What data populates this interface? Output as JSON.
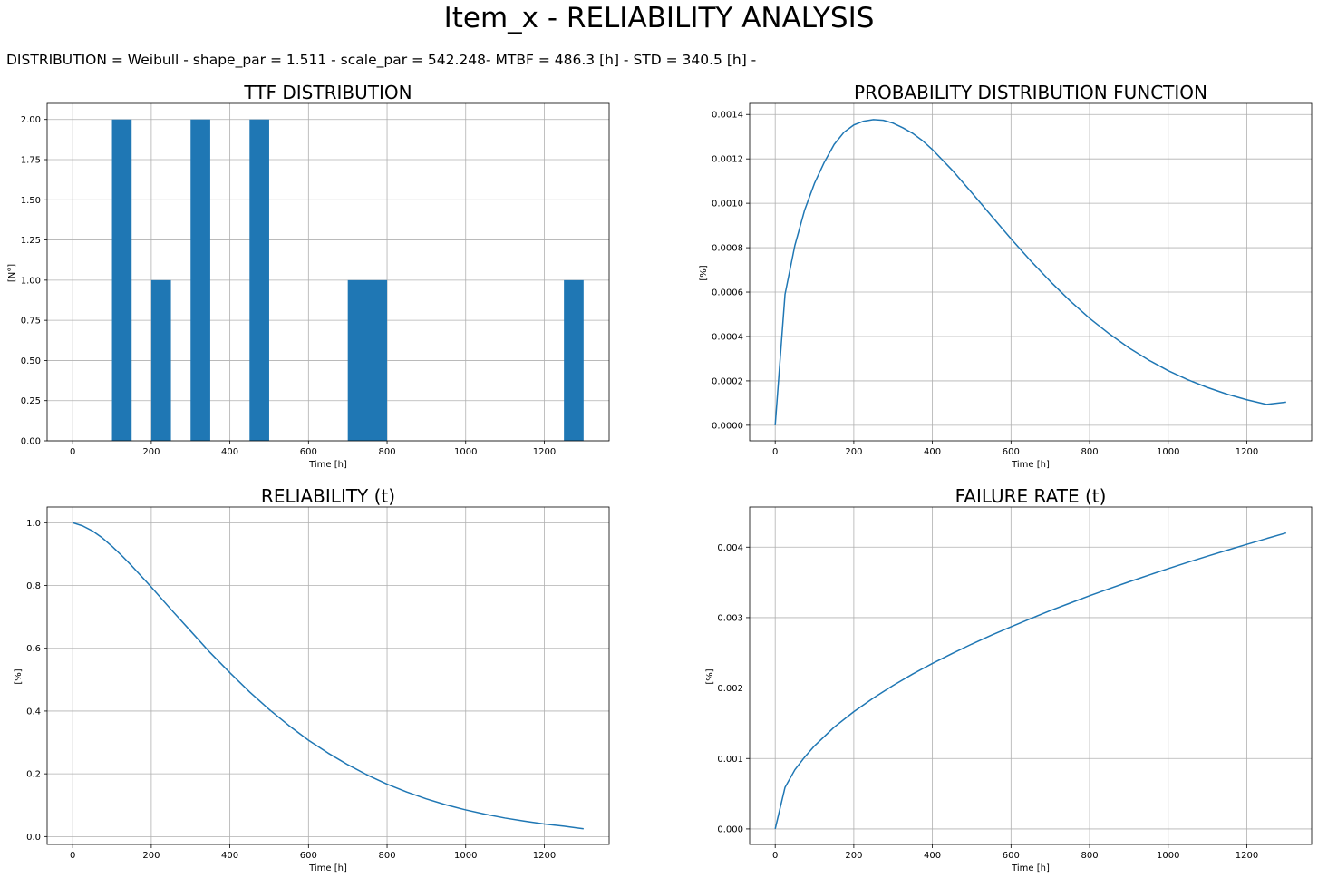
{
  "title": "Item_x - RELIABILITY ANALYSIS",
  "subtitle": "DISTRIBUTION = Weibull - shape_par = 1.511 - scale_par = 542.248- MTBF = 486.3 [h] -  STD = 340.5 [h] -",
  "colors": {
    "series": "#1f77b4",
    "grid": "#b0b0b0"
  },
  "chart_data": [
    {
      "id": "ttf",
      "type": "bar",
      "title": "TTF DISTRIBUTION",
      "xlabel": "Time [h]",
      "ylabel": "[N°]",
      "grid": true,
      "xlim": [
        -65,
        1365
      ],
      "ylim": [
        0,
        2.1
      ],
      "xticks": [
        0,
        200,
        400,
        600,
        800,
        1000,
        1200
      ],
      "xtick_labels": [
        "0",
        "200",
        "400",
        "600",
        "800",
        "1000",
        "1200"
      ],
      "yticks": [
        0,
        0.25,
        0.5,
        0.75,
        1.0,
        1.25,
        1.5,
        1.75,
        2.0
      ],
      "ytick_labels": [
        "0.00",
        "0.25",
        "0.50",
        "0.75",
        "1.00",
        "1.25",
        "1.50",
        "1.75",
        "2.00"
      ],
      "bars": [
        {
          "x0": 100,
          "x1": 150,
          "value": 2
        },
        {
          "x0": 200,
          "x1": 250,
          "value": 1
        },
        {
          "x0": 300,
          "x1": 350,
          "value": 2
        },
        {
          "x0": 450,
          "x1": 500,
          "value": 2
        },
        {
          "x0": 700,
          "x1": 800,
          "value": 1
        },
        {
          "x0": 1250,
          "x1": 1300,
          "value": 1
        }
      ]
    },
    {
      "id": "pdf",
      "type": "line",
      "title": "PROBABILITY DISTRIBUTION FUNCTION",
      "xlabel": "Time [h]",
      "ylabel": "[%]",
      "grid": true,
      "xlim": [
        -65,
        1365
      ],
      "ylim": [
        -7e-05,
        0.00145
      ],
      "xticks": [
        0,
        200,
        400,
        600,
        800,
        1000,
        1200
      ],
      "xtick_labels": [
        "0",
        "200",
        "400",
        "600",
        "800",
        "1000",
        "1200"
      ],
      "yticks": [
        0,
        0.0002,
        0.0004,
        0.0006,
        0.0008,
        0.001,
        0.0012,
        0.0014
      ],
      "ytick_labels": [
        "0.0000",
        "0.0002",
        "0.0004",
        "0.0006",
        "0.0008",
        "0.0010",
        "0.0012",
        "0.0014"
      ],
      "x": [
        0,
        25,
        50,
        75,
        100,
        125,
        150,
        175,
        200,
        225,
        250,
        275,
        300,
        325,
        350,
        375,
        400,
        450,
        500,
        550,
        600,
        650,
        700,
        750,
        800,
        850,
        900,
        950,
        1000,
        1050,
        1100,
        1150,
        1200,
        1250,
        1300
      ],
      "y": [
        0,
        0.00059,
        0.00081,
        0.00097,
        0.00109,
        0.001185,
        0.001265,
        0.00132,
        0.001353,
        0.00137,
        0.001377,
        0.001374,
        0.001361,
        0.00134,
        0.001315,
        0.001282,
        0.001242,
        0.00115,
        0.001048,
        0.000944,
        0.00084,
        0.000741,
        0.000648,
        0.000561,
        0.000482,
        0.000412,
        0.000349,
        0.000294,
        0.000246,
        0.000205,
        0.00017,
        0.00014,
        0.000115,
        9.4e-05,
        0.000104
      ]
    },
    {
      "id": "reliability",
      "type": "line",
      "title": "RELIABILITY (t)",
      "xlabel": "Time [h]",
      "ylabel": "[%]",
      "grid": true,
      "xlim": [
        -65,
        1365
      ],
      "ylim": [
        -0.025,
        1.05
      ],
      "xticks": [
        0,
        200,
        400,
        600,
        800,
        1000,
        1200
      ],
      "xtick_labels": [
        "0",
        "200",
        "400",
        "600",
        "800",
        "1000",
        "1200"
      ],
      "yticks": [
        0,
        0.2,
        0.4,
        0.6,
        0.8,
        1.0
      ],
      "ytick_labels": [
        "0.0",
        "0.2",
        "0.4",
        "0.6",
        "0.8",
        "1.0"
      ],
      "x": [
        0,
        25,
        50,
        75,
        100,
        125,
        150,
        200,
        250,
        300,
        350,
        400,
        450,
        500,
        550,
        600,
        650,
        700,
        750,
        800,
        850,
        900,
        950,
        1000,
        1050,
        1100,
        1150,
        1200,
        1250,
        1300
      ],
      "y": [
        1.0,
        0.99,
        0.974,
        0.952,
        0.925,
        0.895,
        0.863,
        0.795,
        0.724,
        0.655,
        0.586,
        0.522,
        0.461,
        0.405,
        0.354,
        0.307,
        0.266,
        0.229,
        0.196,
        0.167,
        0.142,
        0.12,
        0.101,
        0.085,
        0.071,
        0.059,
        0.049,
        0.04,
        0.033,
        0.025
      ]
    },
    {
      "id": "failure_rate",
      "type": "line",
      "title": "FAILURE RATE (t)",
      "xlabel": "Time [h]",
      "ylabel": "[%]",
      "grid": true,
      "xlim": [
        -65,
        1365
      ],
      "ylim": [
        -0.00022,
        0.00457
      ],
      "xticks": [
        0,
        200,
        400,
        600,
        800,
        1000,
        1200
      ],
      "xtick_labels": [
        "0",
        "200",
        "400",
        "600",
        "800",
        "1000",
        "1200"
      ],
      "yticks": [
        0,
        0.001,
        0.002,
        0.003,
        0.004
      ],
      "ytick_labels": [
        "0.000",
        "0.001",
        "0.002",
        "0.003",
        "0.004"
      ],
      "x": [
        0,
        25,
        50,
        75,
        100,
        150,
        200,
        250,
        300,
        350,
        400,
        450,
        500,
        550,
        600,
        650,
        700,
        750,
        800,
        850,
        900,
        950,
        1000,
        1050,
        1100,
        1150,
        1200,
        1250,
        1300
      ],
      "y": [
        0,
        0.00059,
        0.00084,
        0.00102,
        0.00118,
        0.001445,
        0.001665,
        0.00186,
        0.002037,
        0.0022,
        0.00235,
        0.00249,
        0.002624,
        0.00275,
        0.00287,
        0.002986,
        0.0031,
        0.003205,
        0.00331,
        0.00341,
        0.003508,
        0.003602,
        0.003695,
        0.003785,
        0.003872,
        0.003957,
        0.00404,
        0.004122,
        0.004202
      ]
    }
  ]
}
